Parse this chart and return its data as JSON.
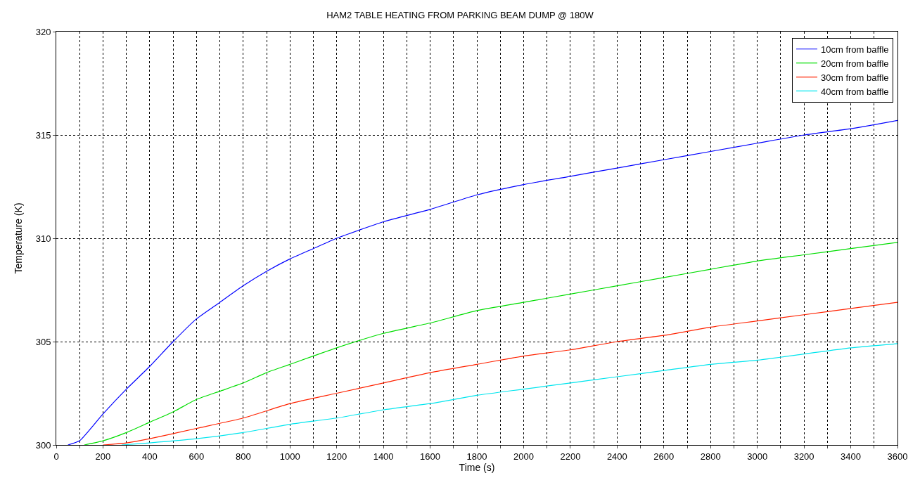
{
  "chart_data": {
    "type": "line",
    "title": "HAM2 TABLE HEATING FROM PARKING BEAM DUMP @ 180W",
    "xlabel": "Time (s)",
    "ylabel": "Temperature (K)",
    "xlim": [
      0,
      3600
    ],
    "ylim": [
      300,
      320
    ],
    "xticks": [
      0,
      {
        "value": 100,
        "label": null
      },
      200,
      {
        "value": 300,
        "label": null
      },
      400,
      {
        "value": 500,
        "label": null
      },
      600,
      {
        "value": 700,
        "label": null
      },
      800,
      {
        "value": 900,
        "label": null
      },
      1000,
      {
        "value": 1100,
        "label": null
      },
      1200,
      {
        "value": 1300,
        "label": null
      },
      1400,
      {
        "value": 1500,
        "label": null
      },
      1600,
      {
        "value": 1700,
        "label": null
      },
      1800,
      {
        "value": 1900,
        "label": null
      },
      2000,
      {
        "value": 2100,
        "label": null
      },
      2200,
      {
        "value": 2300,
        "label": null
      },
      2400,
      {
        "value": 2500,
        "label": null
      },
      2600,
      {
        "value": 2700,
        "label": null
      },
      2800,
      {
        "value": 2900,
        "label": null
      },
      3000,
      {
        "value": 3100,
        "label": null
      },
      3200,
      {
        "value": 3300,
        "label": null
      },
      3400,
      {
        "value": 3500,
        "label": null
      },
      3600
    ],
    "yticks": [
      300,
      305,
      310,
      315,
      320
    ],
    "grid": true,
    "legend": "top right",
    "marker": "none",
    "line_style": "solid",
    "series": [
      {
        "name": "10cm from baffle",
        "color": "#0000ff",
        "x": [
          50,
          100,
          200,
          300,
          400,
          500,
          600,
          700,
          800,
          900,
          1000,
          1100,
          1200,
          1400,
          1600,
          1800,
          2000,
          2200,
          2400,
          2600,
          2800,
          3000,
          3200,
          3400,
          3600
        ],
        "values": [
          300,
          300.2,
          301.5,
          302.7,
          303.8,
          305,
          306.1,
          306.9,
          307.7,
          308.4,
          309,
          309.5,
          310,
          310.8,
          311.4,
          312.1,
          312.6,
          313,
          313.4,
          313.8,
          314.2,
          314.6,
          315,
          315.3,
          315.7
        ]
      },
      {
        "name": "20cm from baffle",
        "color": "#00dd00",
        "x": [
          120,
          200,
          300,
          400,
          500,
          600,
          700,
          800,
          900,
          1000,
          1200,
          1400,
          1600,
          1800,
          2000,
          2200,
          2400,
          2600,
          2800,
          3000,
          3200,
          3400,
          3600
        ],
        "values": [
          300,
          300.2,
          300.6,
          301.1,
          301.6,
          302.2,
          302.6,
          303,
          303.5,
          303.9,
          304.7,
          305.4,
          305.9,
          306.5,
          306.9,
          307.3,
          307.7,
          308.1,
          308.5,
          308.9,
          309.2,
          309.5,
          309.8
        ]
      },
      {
        "name": "30cm from baffle",
        "color": "#ff2200",
        "x": [
          200,
          300,
          400,
          600,
          800,
          1000,
          1200,
          1400,
          1600,
          1800,
          2000,
          2200,
          2400,
          2600,
          2800,
          3000,
          3200,
          3400,
          3600
        ],
        "values": [
          300,
          300.1,
          300.3,
          300.8,
          301.3,
          302,
          302.5,
          303,
          303.5,
          303.9,
          304.3,
          304.6,
          305,
          305.3,
          305.7,
          306,
          306.3,
          306.6,
          306.9
        ]
      },
      {
        "name": "40cm from baffle",
        "color": "#00e5ee",
        "x": [
          280,
          400,
          600,
          800,
          1000,
          1200,
          1400,
          1600,
          1800,
          2000,
          2200,
          2400,
          2600,
          2800,
          3000,
          3200,
          3400,
          3600
        ],
        "values": [
          300,
          300.1,
          300.3,
          300.6,
          301,
          301.3,
          301.7,
          302,
          302.4,
          302.7,
          303,
          303.3,
          303.6,
          303.9,
          304.1,
          304.4,
          304.7,
          304.9
        ]
      }
    ]
  }
}
